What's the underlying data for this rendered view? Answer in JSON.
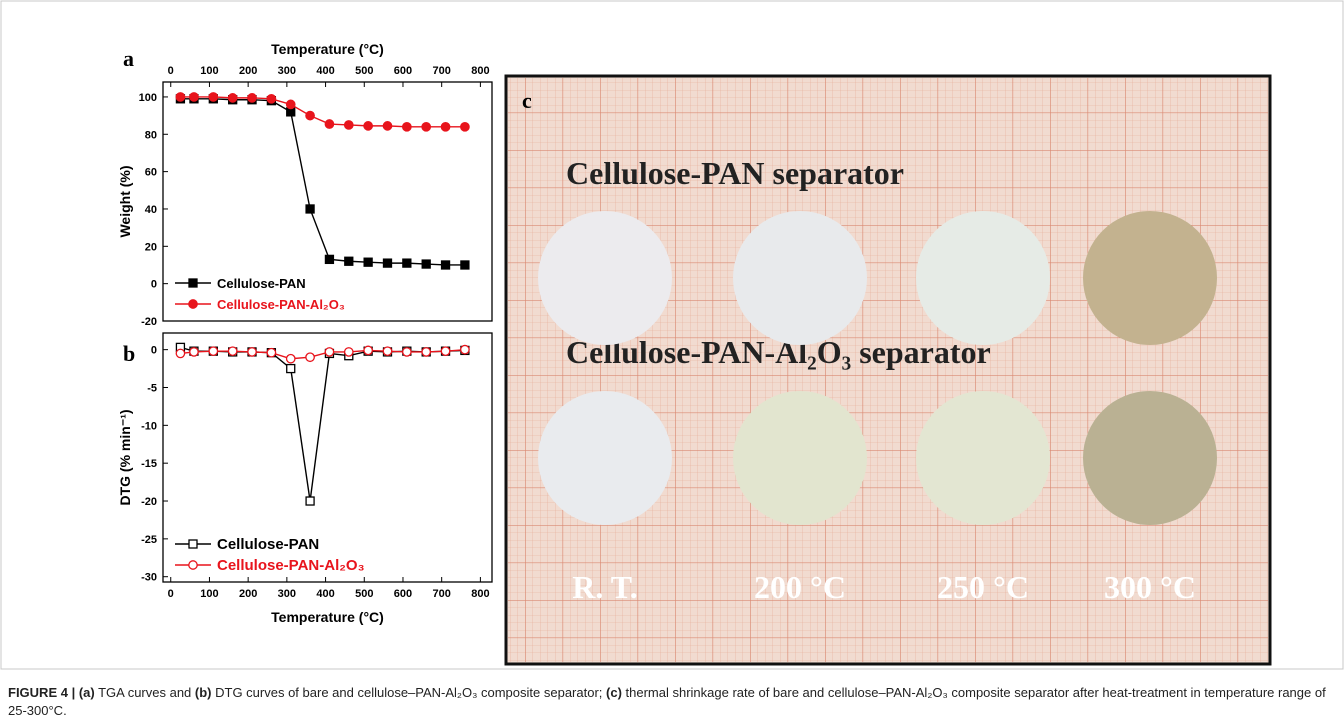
{
  "chart_data": [
    {
      "type": "line",
      "panel_label": "a",
      "xlabel": "Temperature (°C)",
      "ylabel": "Weight (%)",
      "x_axis_side": "top",
      "legend": "lower left",
      "xlim": [
        -20,
        830
      ],
      "xticks": [
        0,
        100,
        200,
        300,
        400,
        500,
        600,
        700,
        800
      ],
      "ylim": [
        -20,
        108
      ],
      "yticks": [
        -20,
        0,
        20,
        40,
        60,
        80,
        100
      ],
      "x": [
        25,
        60,
        110,
        160,
        210,
        260,
        310,
        360,
        410,
        460,
        510,
        560,
        610,
        660,
        710,
        760
      ],
      "series": [
        {
          "name": "Cellulose-PAN",
          "color": "#000000",
          "marker": "square",
          "filled": true,
          "values": [
            99,
            99,
            99,
            98.5,
            98.5,
            98,
            92,
            40,
            13,
            12,
            11.5,
            11,
            11,
            10.5,
            10,
            10
          ]
        },
        {
          "name": "Cellulose-PAN-Al₂O₃",
          "color": "#e8141c",
          "marker": "circle",
          "filled": true,
          "values": [
            100,
            100,
            100,
            99.5,
            99.5,
            99,
            96,
            90,
            85.5,
            85,
            84.5,
            84.5,
            84,
            84,
            84,
            84
          ]
        }
      ]
    },
    {
      "type": "line",
      "panel_label": "b",
      "xlabel": "Temperature (°C)",
      "ylabel": "DTG (% min⁻¹)",
      "x_axis_side": "bottom",
      "legend": "lower left",
      "xlim": [
        -20,
        830
      ],
      "xticks": [
        0,
        100,
        200,
        300,
        400,
        500,
        600,
        700,
        800
      ],
      "ylim": [
        -30.7,
        2.2
      ],
      "yticks": [
        -30,
        -25,
        -20,
        -15,
        -10,
        -5,
        0
      ],
      "x": [
        25,
        60,
        110,
        160,
        210,
        260,
        310,
        360,
        410,
        460,
        510,
        560,
        610,
        660,
        710,
        760
      ],
      "series": [
        {
          "name": "Cellulose-PAN",
          "color": "#000000",
          "marker": "square",
          "filled": false,
          "values": [
            0.3,
            -0.2,
            -0.2,
            -0.3,
            -0.3,
            -0.4,
            -2.5,
            -20,
            -0.5,
            -0.8,
            -0.2,
            -0.3,
            -0.2,
            -0.3,
            -0.2,
            -0.1
          ]
        },
        {
          "name": "Cellulose-PAN-Al₂O₃",
          "color": "#e8141c",
          "marker": "circle",
          "filled": false,
          "values": [
            -0.5,
            -0.3,
            -0.2,
            -0.2,
            -0.3,
            -0.4,
            -1.2,
            -1.0,
            -0.3,
            -0.3,
            -0.1,
            -0.2,
            -0.3,
            -0.3,
            -0.2,
            0
          ]
        }
      ]
    }
  ],
  "photo": {
    "panel_label": "c",
    "row_labels": [
      "Cellulose-PAN separator",
      "Cellulose-PAN-Al₂O₃ separator"
    ],
    "column_labels": [
      "R. T.",
      "200 °C",
      "250 °C",
      "300 °C"
    ]
  },
  "caption": [
    "FIGURE 4 | (a)",
    " TGA curves and ",
    "(b)",
    " DTG curves of bare and cellulose–PAN-Al₂O₃ composite separator; ",
    "(c)",
    " thermal shrinkage rate of bare and cellulose–PAN-Al₂O₃ composite separator after heat-treatment in temperature range of 25-300°C."
  ]
}
